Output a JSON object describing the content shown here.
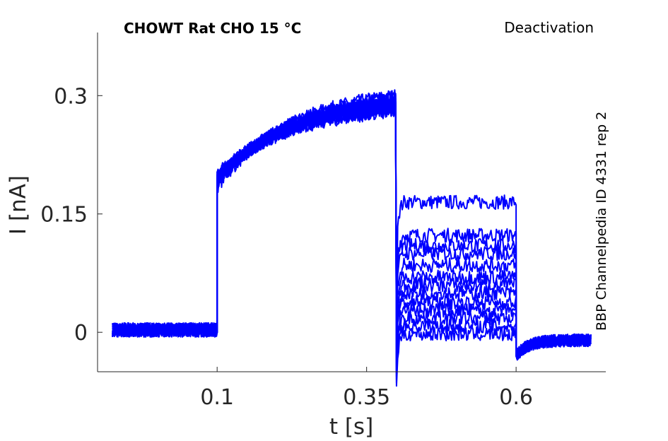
{
  "chart_data": {
    "type": "line",
    "title": "CHOWT  Rat  CHO  15 °C",
    "subtitle": "Deactivation",
    "side_note": "BBP Channelpedia ID 4331 rep 2",
    "xlabel": "t [s]",
    "ylabel": "I [nA]",
    "xlim": [
      -0.1,
      0.75
    ],
    "ylim": [
      -0.05,
      0.38
    ],
    "xticks": [
      0.1,
      0.35,
      0.6
    ],
    "xtick_labels": [
      "0.1",
      "0.35",
      "0.6"
    ],
    "yticks": [
      0,
      0.15,
      0.3
    ],
    "ytick_labels": [
      "0",
      "0.15",
      "0.3"
    ],
    "grid": false,
    "line_color": "#0000ff",
    "protocol": {
      "baseline_end": 0.1,
      "step_start": 0.1,
      "step_end": 0.4,
      "tail_end": 0.6,
      "record_end": 0.725
    },
    "series": [
      {
        "start_value": 0.185,
        "end_value": 0.3,
        "tail_value": 0.165
      },
      {
        "start_value": 0.188,
        "end_value": 0.298,
        "tail_value": 0.123
      },
      {
        "start_value": 0.19,
        "end_value": 0.296,
        "tail_value": 0.11
      },
      {
        "start_value": 0.191,
        "end_value": 0.294,
        "tail_value": 0.1
      },
      {
        "start_value": 0.193,
        "end_value": 0.292,
        "tail_value": 0.085
      },
      {
        "start_value": 0.194,
        "end_value": 0.29,
        "tail_value": 0.07
      },
      {
        "start_value": 0.195,
        "end_value": 0.288,
        "tail_value": 0.06
      },
      {
        "start_value": 0.196,
        "end_value": 0.287,
        "tail_value": 0.05
      },
      {
        "start_value": 0.197,
        "end_value": 0.286,
        "tail_value": 0.038
      },
      {
        "start_value": 0.198,
        "end_value": 0.285,
        "tail_value": 0.028
      },
      {
        "start_value": 0.199,
        "end_value": 0.284,
        "tail_value": 0.018
      },
      {
        "start_value": 0.2,
        "end_value": 0.282,
        "tail_value": 0.008
      },
      {
        "start_value": 0.201,
        "end_value": 0.28,
        "tail_value": -0.002
      }
    ]
  }
}
